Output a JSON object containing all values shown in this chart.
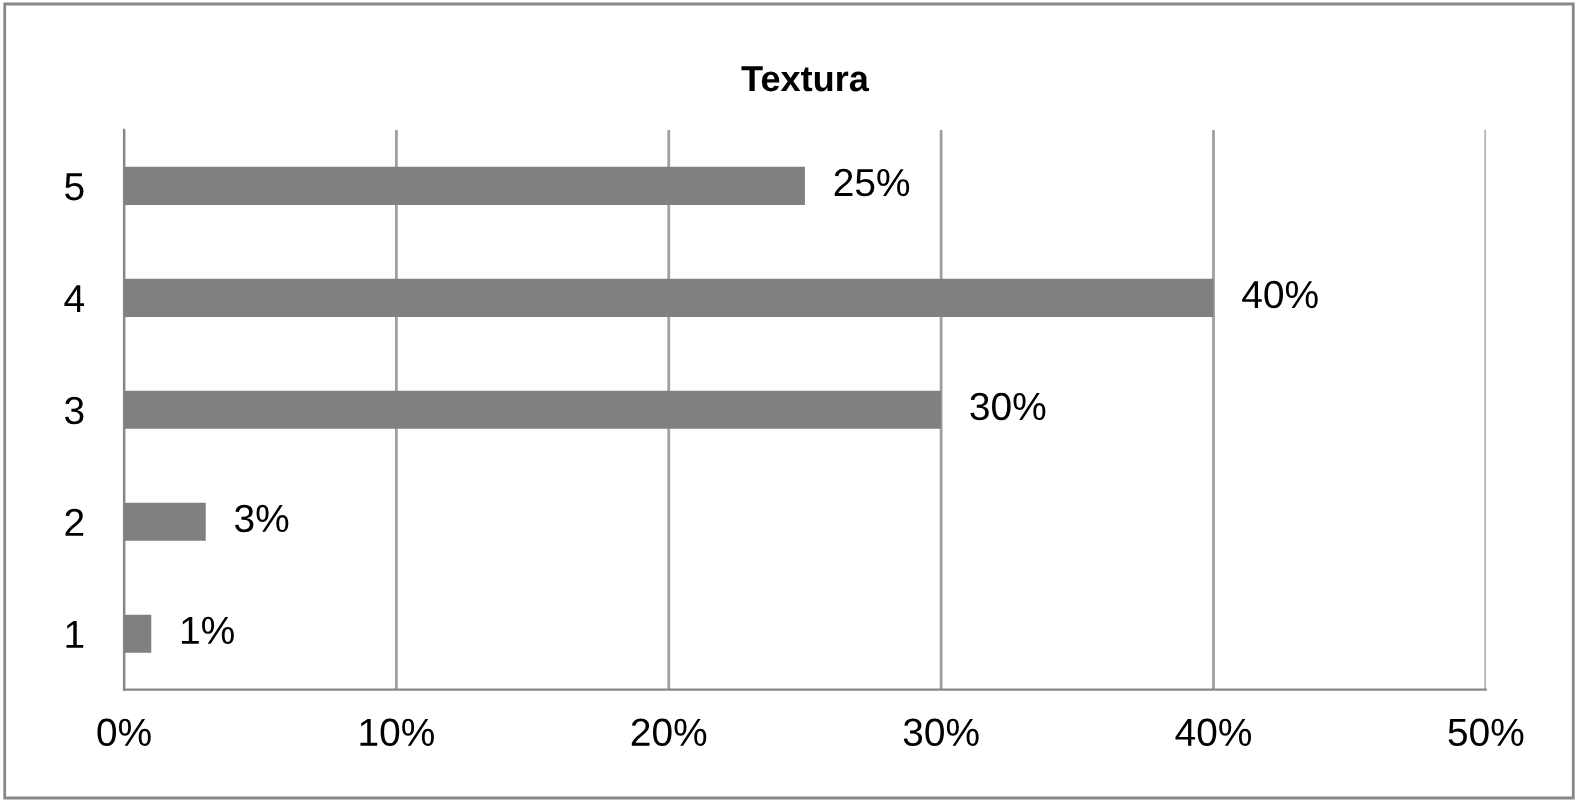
{
  "chart_data": {
    "type": "bar",
    "orientation": "horizontal",
    "title": "Textura",
    "categories": [
      "5",
      "4",
      "3",
      "2",
      "1"
    ],
    "values": [
      25,
      40,
      30,
      3,
      1
    ],
    "color": "#808080",
    "value_labels": [
      "25%",
      "40%",
      "30%",
      "3%",
      "1%"
    ],
    "xlim": [
      0,
      50
    ],
    "xticks": [
      {
        "value": 0,
        "label": "0%"
      },
      {
        "value": 10,
        "label": "10%"
      },
      {
        "value": 20,
        "label": "20%"
      },
      {
        "value": 30,
        "label": "30%"
      },
      {
        "value": 40,
        "label": "40%"
      },
      {
        "value": 50,
        "label": "50%"
      }
    ],
    "grid": "x",
    "legend": false
  }
}
